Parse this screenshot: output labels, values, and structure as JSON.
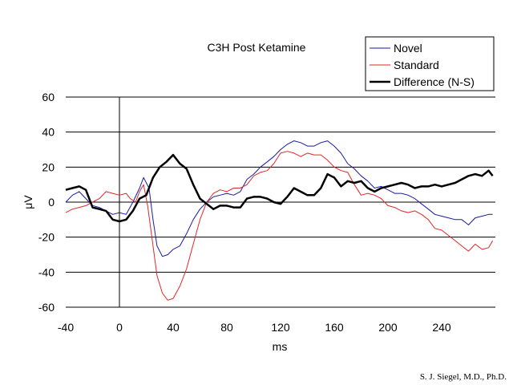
{
  "chart_data": {
    "type": "line",
    "title": "C3H Post Ketamine",
    "xlabel": "ms",
    "ylabel": "μV",
    "xlim": [
      -40,
      280
    ],
    "ylim": [
      -60,
      60
    ],
    "x_ticks": [
      -40,
      0,
      40,
      80,
      120,
      160,
      200,
      240
    ],
    "x_tick_labels": [
      "-40",
      "0",
      "40",
      "80",
      "120",
      "160",
      "200",
      "240"
    ],
    "y_ticks": [
      60,
      40,
      20,
      0,
      -20,
      -40,
      -60
    ],
    "y_tick_labels": [
      "60",
      "40",
      "20",
      "0",
      "-20",
      "-40",
      "-60"
    ],
    "grid": "horizontal",
    "legend_position": "top-right",
    "credit": "S. J. Siegel, M.D., Ph.D.",
    "series": [
      {
        "name": "Novel",
        "color": "#1a1aa6",
        "stroke_weight": "thin",
        "points": [
          [
            -40,
            0
          ],
          [
            -35,
            4
          ],
          [
            -30,
            6
          ],
          [
            -25,
            2
          ],
          [
            -20,
            -2
          ],
          [
            -15,
            -3
          ],
          [
            -10,
            -5
          ],
          [
            -5,
            -7
          ],
          [
            0,
            -6
          ],
          [
            5,
            -7
          ],
          [
            10,
            0
          ],
          [
            15,
            8
          ],
          [
            18,
            14
          ],
          [
            22,
            8
          ],
          [
            25,
            -10
          ],
          [
            28,
            -25
          ],
          [
            32,
            -31
          ],
          [
            36,
            -30
          ],
          [
            40,
            -27
          ],
          [
            45,
            -25
          ],
          [
            50,
            -18
          ],
          [
            55,
            -10
          ],
          [
            60,
            -4
          ],
          [
            65,
            0
          ],
          [
            70,
            3
          ],
          [
            75,
            4
          ],
          [
            80,
            5
          ],
          [
            85,
            4
          ],
          [
            90,
            6
          ],
          [
            95,
            13
          ],
          [
            100,
            16
          ],
          [
            105,
            20
          ],
          [
            110,
            23
          ],
          [
            115,
            26
          ],
          [
            120,
            30
          ],
          [
            125,
            33
          ],
          [
            130,
            35
          ],
          [
            135,
            34
          ],
          [
            140,
            32
          ],
          [
            145,
            32
          ],
          [
            150,
            34
          ],
          [
            155,
            35
          ],
          [
            160,
            32
          ],
          [
            165,
            28
          ],
          [
            170,
            22
          ],
          [
            175,
            19
          ],
          [
            180,
            15
          ],
          [
            185,
            12
          ],
          [
            190,
            8
          ],
          [
            195,
            9
          ],
          [
            200,
            7
          ],
          [
            205,
            5
          ],
          [
            210,
            5
          ],
          [
            215,
            4
          ],
          [
            220,
            2
          ],
          [
            225,
            -1
          ],
          [
            230,
            -4
          ],
          [
            235,
            -7
          ],
          [
            240,
            -8
          ],
          [
            245,
            -9
          ],
          [
            250,
            -10
          ],
          [
            255,
            -10
          ],
          [
            260,
            -13
          ],
          [
            265,
            -9
          ],
          [
            270,
            -8
          ],
          [
            275,
            -7
          ],
          [
            278,
            -7
          ]
        ]
      },
      {
        "name": "Standard",
        "color": "#e32626",
        "stroke_weight": "thin",
        "points": [
          [
            -40,
            -6
          ],
          [
            -35,
            -4
          ],
          [
            -30,
            -3
          ],
          [
            -25,
            -2
          ],
          [
            -20,
            0
          ],
          [
            -15,
            2
          ],
          [
            -10,
            6
          ],
          [
            -5,
            5
          ],
          [
            0,
            4
          ],
          [
            5,
            5
          ],
          [
            8,
            2
          ],
          [
            12,
            0
          ],
          [
            15,
            6
          ],
          [
            18,
            10
          ],
          [
            21,
            -2
          ],
          [
            25,
            -25
          ],
          [
            28,
            -42
          ],
          [
            32,
            -52
          ],
          [
            36,
            -56
          ],
          [
            40,
            -55
          ],
          [
            45,
            -48
          ],
          [
            50,
            -38
          ],
          [
            55,
            -24
          ],
          [
            60,
            -10
          ],
          [
            65,
            0
          ],
          [
            70,
            5
          ],
          [
            75,
            7
          ],
          [
            80,
            6
          ],
          [
            85,
            8
          ],
          [
            90,
            8
          ],
          [
            95,
            10
          ],
          [
            100,
            15
          ],
          [
            105,
            17
          ],
          [
            110,
            18
          ],
          [
            115,
            22
          ],
          [
            120,
            28
          ],
          [
            125,
            29
          ],
          [
            130,
            28
          ],
          [
            135,
            26
          ],
          [
            140,
            28
          ],
          [
            145,
            27
          ],
          [
            150,
            27
          ],
          [
            155,
            24
          ],
          [
            160,
            20
          ],
          [
            165,
            18
          ],
          [
            170,
            17
          ],
          [
            175,
            10
          ],
          [
            180,
            4
          ],
          [
            185,
            5
          ],
          [
            190,
            4
          ],
          [
            195,
            2
          ],
          [
            200,
            -2
          ],
          [
            205,
            -3
          ],
          [
            210,
            -5
          ],
          [
            215,
            -6
          ],
          [
            220,
            -5
          ],
          [
            225,
            -7
          ],
          [
            230,
            -10
          ],
          [
            235,
            -15
          ],
          [
            240,
            -16
          ],
          [
            245,
            -19
          ],
          [
            250,
            -22
          ],
          [
            255,
            -25
          ],
          [
            260,
            -28
          ],
          [
            265,
            -24
          ],
          [
            270,
            -27
          ],
          [
            275,
            -26
          ],
          [
            278,
            -22
          ]
        ]
      },
      {
        "name": "Difference (N-S)",
        "color": "#000000",
        "stroke_weight": "bold",
        "points": [
          [
            -40,
            7
          ],
          [
            -35,
            8
          ],
          [
            -30,
            9
          ],
          [
            -25,
            7
          ],
          [
            -20,
            -3
          ],
          [
            -15,
            -4
          ],
          [
            -10,
            -5
          ],
          [
            -5,
            -10
          ],
          [
            0,
            -11
          ],
          [
            5,
            -10
          ],
          [
            10,
            -5
          ],
          [
            15,
            2
          ],
          [
            20,
            4
          ],
          [
            25,
            14
          ],
          [
            30,
            20
          ],
          [
            35,
            23
          ],
          [
            40,
            27
          ],
          [
            45,
            22
          ],
          [
            50,
            19
          ],
          [
            55,
            10
          ],
          [
            60,
            2
          ],
          [
            65,
            -1
          ],
          [
            70,
            -4
          ],
          [
            75,
            -2
          ],
          [
            80,
            -2
          ],
          [
            85,
            -3
          ],
          [
            90,
            -3
          ],
          [
            95,
            2
          ],
          [
            100,
            3
          ],
          [
            105,
            3
          ],
          [
            110,
            2
          ],
          [
            115,
            0
          ],
          [
            120,
            -1
          ],
          [
            125,
            3
          ],
          [
            130,
            8
          ],
          [
            135,
            6
          ],
          [
            140,
            4
          ],
          [
            145,
            4
          ],
          [
            150,
            8
          ],
          [
            155,
            16
          ],
          [
            160,
            14
          ],
          [
            165,
            9
          ],
          [
            170,
            12
          ],
          [
            175,
            11
          ],
          [
            180,
            12
          ],
          [
            185,
            8
          ],
          [
            190,
            6
          ],
          [
            195,
            8
          ],
          [
            200,
            9
          ],
          [
            205,
            10
          ],
          [
            210,
            11
          ],
          [
            215,
            10
          ],
          [
            220,
            8
          ],
          [
            225,
            9
          ],
          [
            230,
            9
          ],
          [
            235,
            10
          ],
          [
            240,
            9
          ],
          [
            245,
            10
          ],
          [
            250,
            11
          ],
          [
            255,
            13
          ],
          [
            260,
            15
          ],
          [
            265,
            16
          ],
          [
            270,
            15
          ],
          [
            275,
            18
          ],
          [
            278,
            15
          ]
        ]
      }
    ]
  }
}
